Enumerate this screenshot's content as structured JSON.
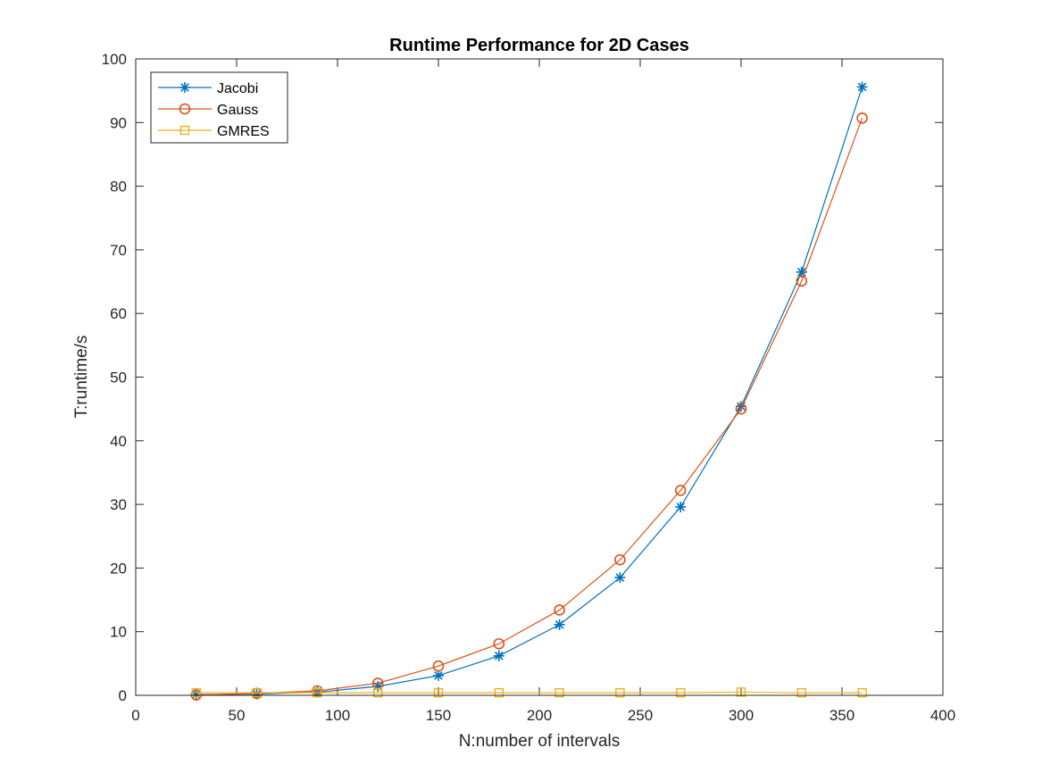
{
  "chart_data": {
    "type": "line",
    "title": "Runtime Performance for 2D Cases",
    "xlabel": "N:number of intervals",
    "ylabel": "T:runtime/s",
    "xlim": [
      0,
      400
    ],
    "ylim": [
      0,
      100
    ],
    "xticks": [
      0,
      50,
      100,
      150,
      200,
      250,
      300,
      350,
      400
    ],
    "yticks": [
      0,
      10,
      20,
      30,
      40,
      50,
      60,
      70,
      80,
      90,
      100
    ],
    "grid": false,
    "legend_position": "top-left",
    "x": [
      30,
      60,
      90,
      120,
      150,
      180,
      210,
      240,
      270,
      300,
      330,
      360
    ],
    "series": [
      {
        "name": "Jacobi",
        "color": "#0072BD",
        "marker": "asterisk",
        "values": [
          0.1,
          0.2,
          0.5,
          1.4,
          3.1,
          6.2,
          11.1,
          18.5,
          29.6,
          45.4,
          66.5,
          95.6
        ]
      },
      {
        "name": "Gauss",
        "color": "#D95319",
        "marker": "circle",
        "values": [
          0.05,
          0.3,
          0.7,
          1.9,
          4.6,
          8.1,
          13.4,
          21.3,
          32.2,
          45.0,
          65.1,
          90.7
        ]
      },
      {
        "name": "GMRES",
        "color": "#EDB120",
        "marker": "square",
        "values": [
          0.4,
          0.4,
          0.4,
          0.4,
          0.4,
          0.4,
          0.4,
          0.4,
          0.4,
          0.5,
          0.4,
          0.4
        ]
      }
    ]
  }
}
